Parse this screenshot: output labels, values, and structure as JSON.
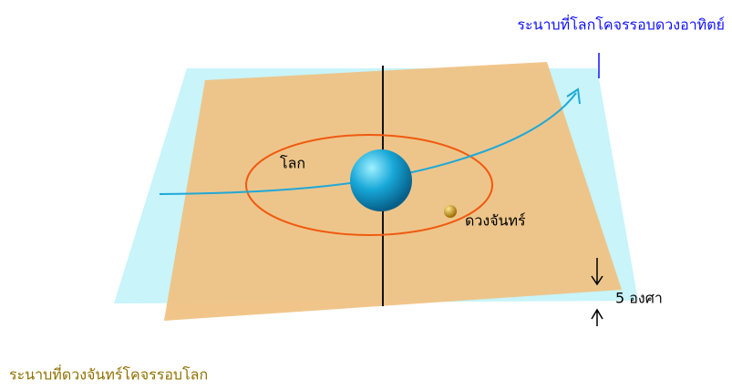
{
  "labels": {
    "sun_plane": "ระนาบที่โลกโคจรรอบดวงอาทิตย์",
    "earth": "โลก",
    "moon": "ดวงจันทร์",
    "angle": "5 องศา",
    "moon_plane": "ระนาบที่ดวงจันทร์โคจรรอบโลก"
  }
}
